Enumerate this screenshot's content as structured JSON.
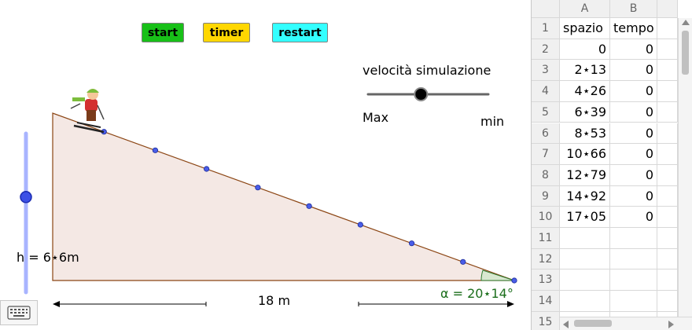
{
  "buttons": {
    "start": {
      "label": "start",
      "color": "#18c018"
    },
    "timer": {
      "label": "timer",
      "color": "#ffd700"
    },
    "restart": {
      "label": "restart",
      "color": "#33ffff"
    }
  },
  "speed_slider": {
    "title": "velocità simulazione",
    "max_label": "Max",
    "min_label": "min",
    "value_fraction": 0.44
  },
  "height_slider": {
    "value_fraction": 0.6
  },
  "ramp": {
    "height_label": "h = 6⋆6m",
    "length_label": "18 m",
    "angle_label": "α = 20⋆14°",
    "fill": "#f4e8e4",
    "stroke": "#8b4513",
    "point_color": "#4a5de8"
  },
  "spreadsheet": {
    "columns": [
      "A",
      "B"
    ],
    "row_numbers": [
      "1",
      "2",
      "3",
      "4",
      "5",
      "6",
      "7",
      "8",
      "9",
      "10",
      "11",
      "12",
      "13",
      "14",
      "15"
    ],
    "header_row": [
      "spazio",
      "tempo"
    ],
    "rows": [
      [
        "0",
        "0"
      ],
      [
        "2⋆13",
        "0"
      ],
      [
        "4⋆26",
        "0"
      ],
      [
        "6⋆39",
        "0"
      ],
      [
        "8⋆53",
        "0"
      ],
      [
        "10⋆66",
        "0"
      ],
      [
        "12⋆79",
        "0"
      ],
      [
        "14⋆92",
        "0"
      ],
      [
        "17⋆05",
        "0"
      ]
    ]
  }
}
